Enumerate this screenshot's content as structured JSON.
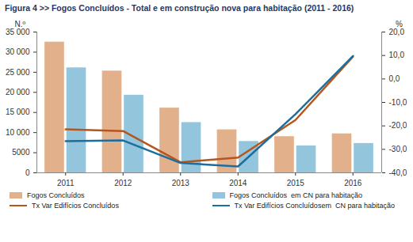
{
  "chart_data": {
    "type": "bar",
    "title": "Figura 4  >> Fogos Concluídos - Total e em construção nova para habitação (2011 - 2016)",
    "ylabel": "N.º",
    "y2label": "%",
    "categories": [
      "2011",
      "2012",
      "2013",
      "2014",
      "2015",
      "2016"
    ],
    "series": [
      {
        "name": "Fogos Concluídos",
        "type": "bar",
        "color": "#E3B08C",
        "values": [
          32500,
          25300,
          16100,
          10700,
          9000,
          9700
        ]
      },
      {
        "name": "Fogos Concluídos  em CN para habitação",
        "type": "bar",
        "color": "#93C6DD",
        "values": [
          26100,
          19300,
          12500,
          7800,
          6700,
          7300
        ]
      },
      {
        "name": "Tx Var Edifícios Concluídos",
        "type": "line",
        "axis": "y2",
        "color": "#B5561E",
        "values": [
          -21.5,
          -22.2,
          -35.5,
          -33.5,
          -17.5,
          9.5
        ]
      },
      {
        "name": "Tx Var Edifícios Concluídosem  CN para habitação",
        "type": "line",
        "axis": "y2",
        "color": "#1D6E9C",
        "values": [
          -26.5,
          -26.2,
          -35.8,
          -37.3,
          -15.0,
          9.8
        ]
      }
    ],
    "ylim": [
      0,
      35000
    ],
    "yticks": [
      0,
      {
        "value": 5000,
        "label": "5000"
      },
      {
        "value": 10000,
        "label": "10 000"
      },
      {
        "value": 15000,
        "label": "15 000"
      },
      {
        "value": 20000,
        "label": "20 000"
      },
      {
        "value": 25000,
        "label": "25 000"
      },
      {
        "value": 30000,
        "label": "30 000"
      },
      {
        "value": 35000,
        "label": "35 000"
      }
    ],
    "y2lim": [
      -40,
      20
    ],
    "y2ticks": [
      {
        "value": -40,
        "label": "-40,0"
      },
      {
        "value": -30,
        "label": "-30,0"
      },
      {
        "value": -20,
        "label": "-20,0"
      },
      {
        "value": -10,
        "label": "-10,0"
      },
      {
        "value": 0,
        "label": "0,0"
      },
      {
        "value": 10,
        "label": "10,0"
      },
      {
        "value": 20,
        "label": "20,0"
      }
    ],
    "grid": false,
    "legend": "bottom"
  }
}
